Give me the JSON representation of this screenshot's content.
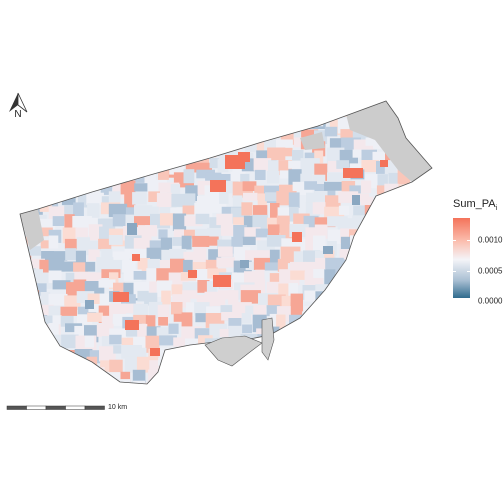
{
  "north_arrow": {
    "label": "N",
    "icon": "north-arrow-icon"
  },
  "legend": {
    "title_main": "Sum_PA",
    "title_sub": "i",
    "ticks": [
      {
        "label": "0.0010",
        "value": 0.001
      },
      {
        "label": "0.0005",
        "value": 0.0005
      },
      {
        "label": "0.0000",
        "value": 0.0
      }
    ],
    "colors": {
      "high": "#f4735a",
      "mid": "#f4f4f8",
      "low": "#2f6b8d",
      "no_data": "#cccccc"
    }
  },
  "scale_bar": {
    "label": "10 km"
  }
}
